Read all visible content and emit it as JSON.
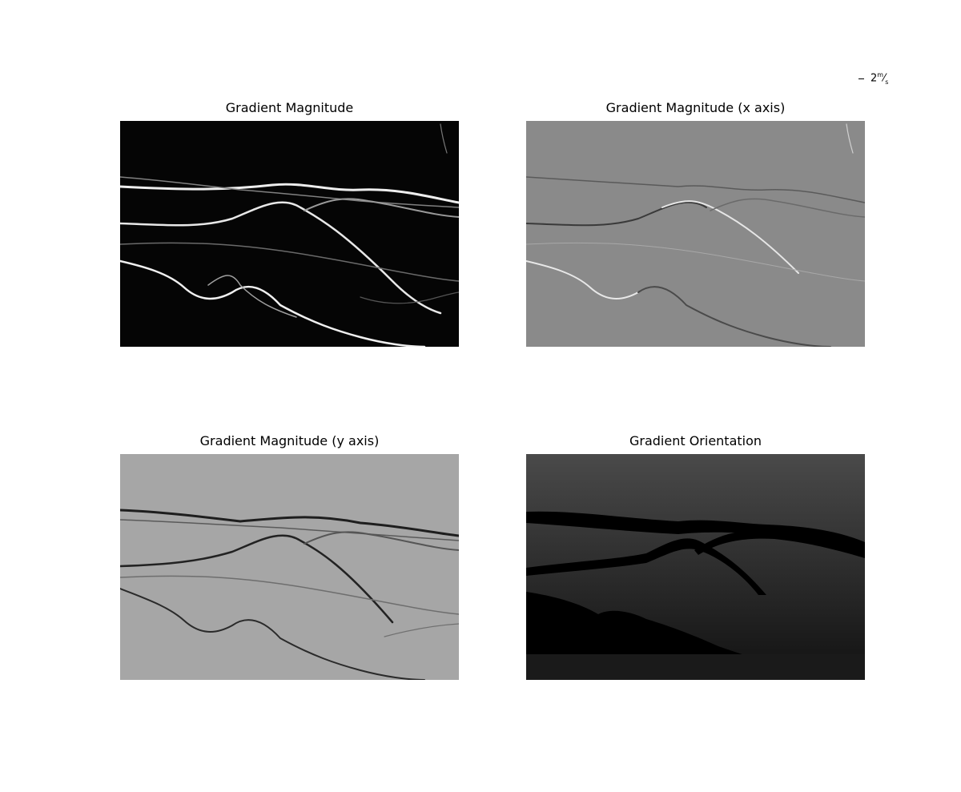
{
  "legend": {
    "label": "2",
    "numerator": "m",
    "denominator": "s"
  },
  "panels": [
    {
      "title": "Gradient Magnitude",
      "style": "magnitude",
      "icon": "edge-map-image"
    },
    {
      "title": "Gradient Magnitude (x axis)",
      "style": "emboss-x",
      "icon": "emboss-image"
    },
    {
      "title": "Gradient Magnitude (y axis)",
      "style": "emboss-y",
      "icon": "emboss-image"
    },
    {
      "title": "Gradient Orientation",
      "style": "orientation",
      "icon": "orientation-image"
    }
  ]
}
